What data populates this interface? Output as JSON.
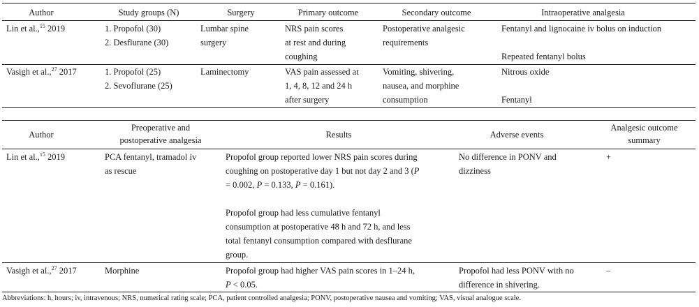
{
  "table1": {
    "headers": [
      "Author",
      "Study groups (N)",
      "Surgery",
      "Primary outcome",
      "Secondary outcome",
      "Intraoperative analgesia"
    ],
    "rows": [
      {
        "author": "Lin et al.,",
        "ref": "15",
        "year": "2019",
        "groups": [
          "1. Propofol (30)",
          "2. Desflurane (30)"
        ],
        "surgery": [
          "Lumbar spine",
          "surgery"
        ],
        "primary": [
          "NRS pain scores",
          "at rest and during",
          "coughing"
        ],
        "secondary": [
          "Postoperative analgesic",
          "requirements"
        ],
        "intraop": [
          "Fentanyl and lignocaine iv bolus on induction",
          "Repeated fentanyl bolus"
        ]
      },
      {
        "author": "Vasigh et al.,",
        "ref": "27",
        "year": "2017",
        "groups": [
          "1. Propofol (25)",
          "2. Sevoflurane (25)"
        ],
        "surgery": [
          "Laminectomy"
        ],
        "primary": [
          "VAS pain assessed at",
          "1, 4, 8, 12 and 24 h",
          "after surgery"
        ],
        "secondary": [
          "Vomiting, shivering,",
          "nausea, and morphine",
          "consumption"
        ],
        "intraop": [
          "Nitrous oxide",
          "Fentanyl"
        ]
      }
    ]
  },
  "table2": {
    "headers": {
      "author": "Author",
      "preop": [
        "Preoperative and",
        "postoperative analgesia"
      ],
      "results": "Results",
      "adverse": "Adverse events",
      "summary": [
        "Analgesic outcome",
        "summary"
      ]
    },
    "rows": [
      {
        "author": "Lin et al.,",
        "ref": "15",
        "year": "2019",
        "preop": [
          "PCA fentanyl, tramadol iv",
          "as rescue"
        ],
        "results_p1": [
          "Propofol group reported lower NRS pain scores during",
          "coughing on postoperative day 1 but not day 2 and 3 (",
          "P",
          " = 0.002, ",
          "P",
          " = 0.133, ",
          "P",
          " = 0.161)."
        ],
        "results_p2": [
          "Propofol group had less cumulative fentanyl",
          "consumption at postoperative 48 h and 72 h, and less",
          "total fentanyl consumption compared with desflurane",
          "group."
        ],
        "adverse": [
          "No difference in PONV and",
          "dizziness"
        ],
        "summary": "+"
      },
      {
        "author": "Vasigh et al.,",
        "ref": "27",
        "year": "2017",
        "preop": [
          "Morphine"
        ],
        "results_p1": [
          "Propofol group had higher VAS pain scores in 1–24 h,",
          "P",
          " < 0.05."
        ],
        "adverse": [
          "Propofol had less PONV with no",
          "difference in shivering."
        ],
        "summary": "–"
      }
    ]
  },
  "footnote": "Abbreviations: h, hours; iv, intravenous; NRS, numerical rating scale; PCA, patient controlled analgesia; PONV, postoperative nausea and vomiting; VAS, visual analogue scale."
}
